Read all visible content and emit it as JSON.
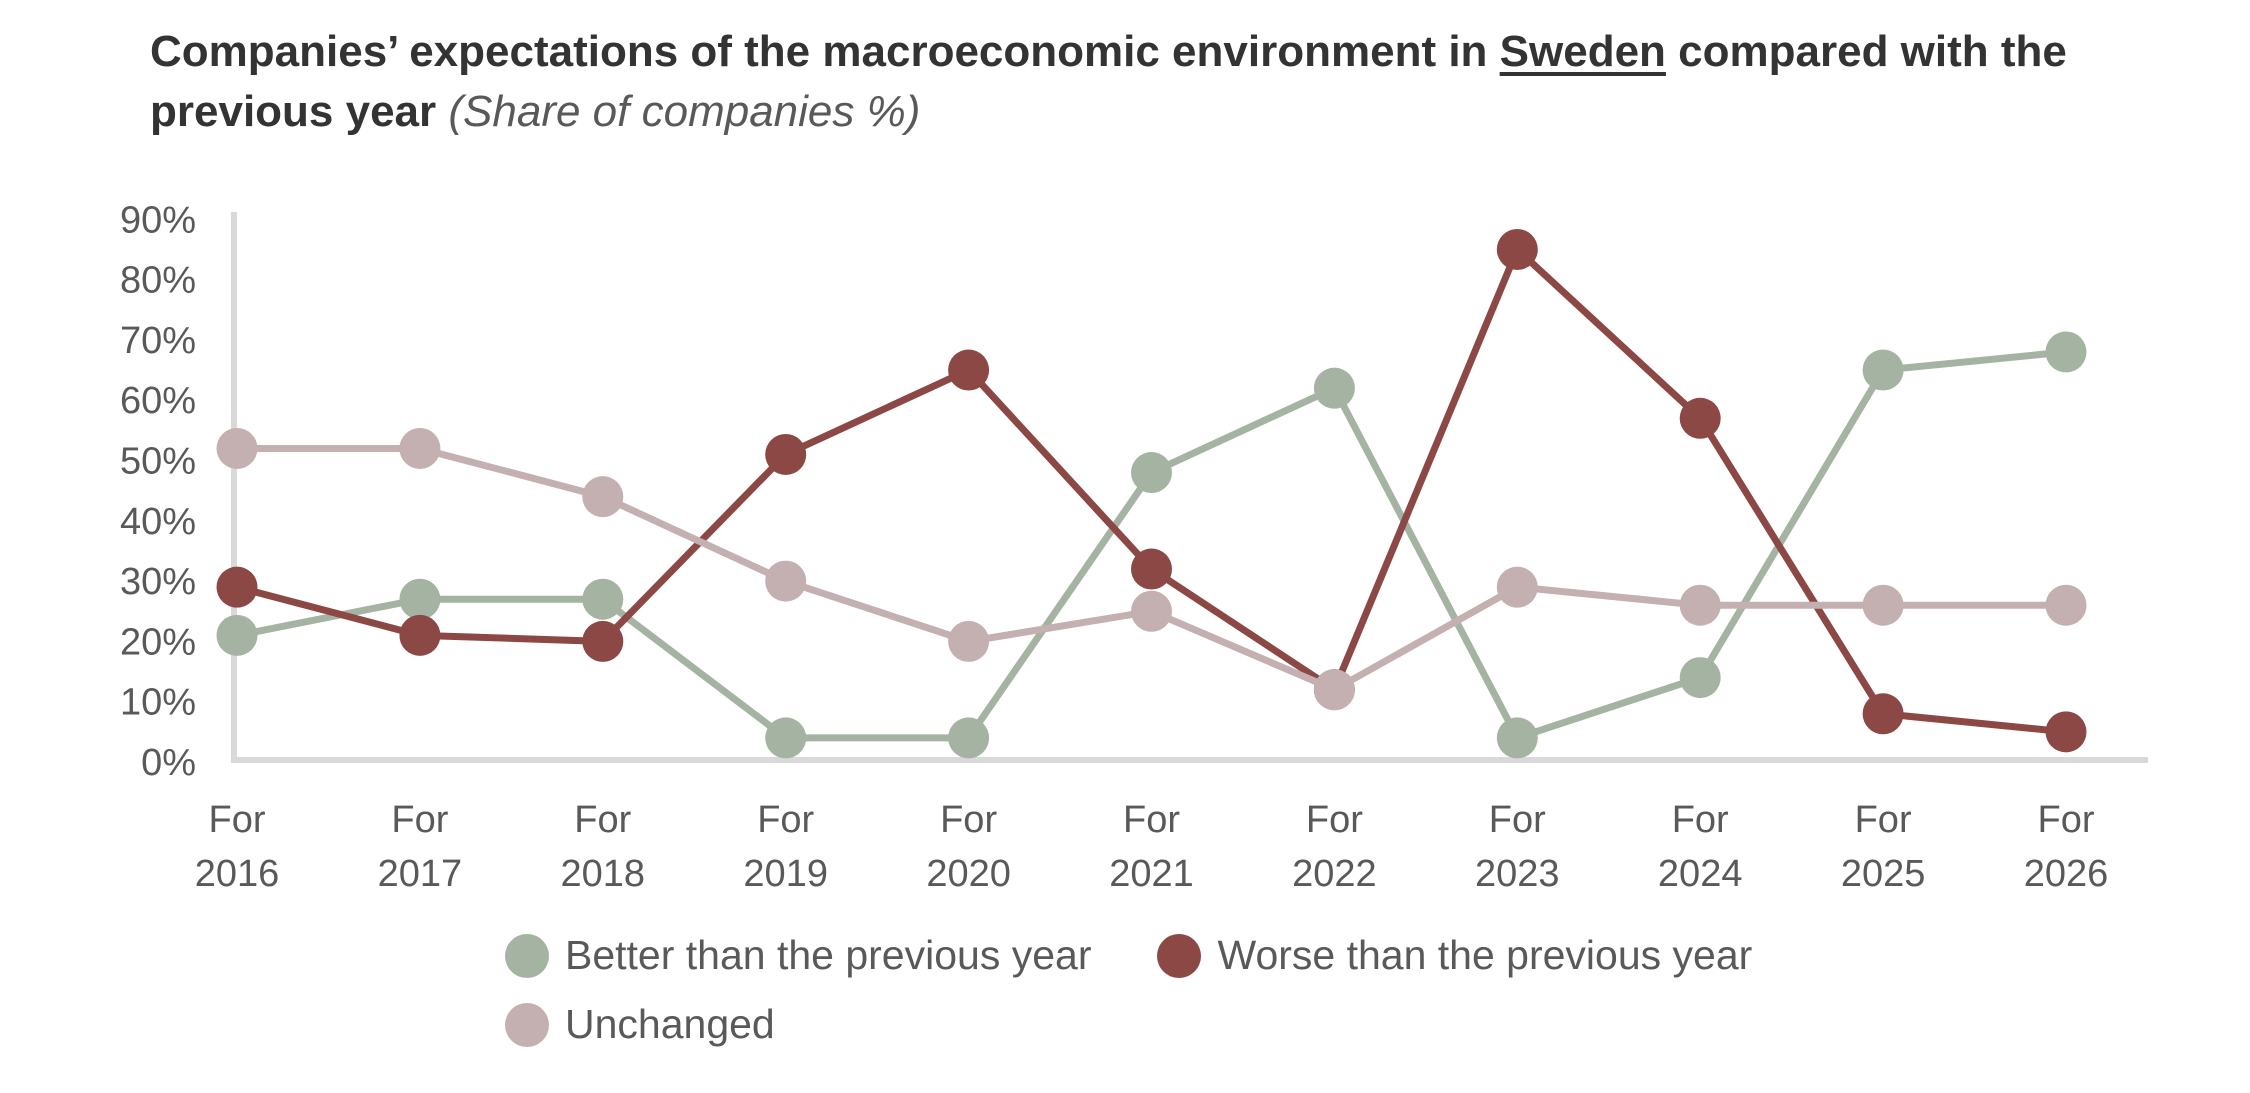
{
  "title": {
    "part1": "Companies’ expectations of the macroeconomic environment in ",
    "underlined": "Sweden",
    "part2": " compared with the ",
    "line2_bold": "previous year",
    "subtitle": "(Share of companies %)"
  },
  "chart_data": {
    "type": "line",
    "categories": [
      "For 2016",
      "For 2017",
      "For 2018",
      "For 2019",
      "For 2020",
      "For 2021",
      "For 2022",
      "For 2023",
      "For 2024",
      "For 2025",
      "For 2026"
    ],
    "x_tick_top_label": "For",
    "x_tick_years": [
      "2016",
      "2017",
      "2018",
      "2019",
      "2020",
      "2021",
      "2022",
      "2023",
      "2024",
      "2025",
      "2026"
    ],
    "y_ticks": [
      "0%",
      "10%",
      "20%",
      "30%",
      "40%",
      "50%",
      "60%",
      "70%",
      "80%",
      "90%"
    ],
    "ylim": [
      0,
      90
    ],
    "grid": false,
    "legend_position": "bottom",
    "marker": "circle",
    "series": [
      {
        "name": "Better than the previous year",
        "color": "#A5B4A2",
        "values": [
          21,
          27,
          27,
          4,
          4,
          48,
          62,
          4,
          14,
          65,
          68
        ]
      },
      {
        "name": "Worse than the previous year",
        "color": "#8C4845",
        "values": [
          29,
          21,
          20,
          51,
          65,
          32,
          12,
          85,
          57,
          8,
          5
        ]
      },
      {
        "name": "Unchanged",
        "color": "#C4AFB1",
        "values": [
          52,
          52,
          44,
          30,
          20,
          25,
          12,
          29,
          26,
          26,
          26
        ]
      }
    ]
  },
  "colors": {
    "axis_line": "#D9D9D9",
    "tick_label": "#595959",
    "title_text": "#333333",
    "subtitle_text": "#595959",
    "legend_text": "#595959"
  }
}
